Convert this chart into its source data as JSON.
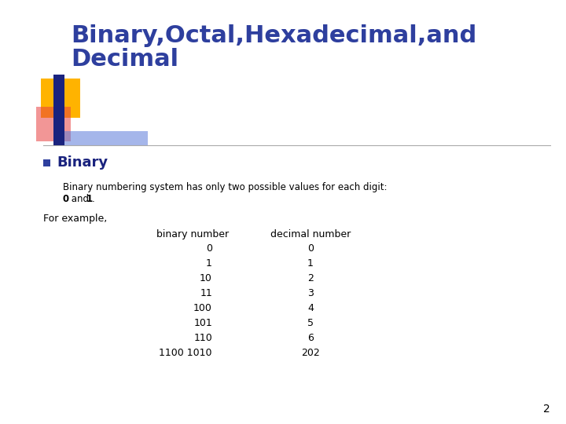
{
  "title_line1": "Binary,Octal,Hexadecimal,and",
  "title_line2": "Decimal",
  "title_color": "#2E3F9E",
  "title_fontsize": 22,
  "bullet_label": "Binary",
  "bullet_color": "#1a237e",
  "bullet_square_color": "#2E3F9E",
  "body_text": "Binary numbering system has only two possible values for each digit:",
  "body_bold0": "0",
  "body_and": " and ",
  "body_bold1": "1",
  "body_period": ".",
  "for_example": "For example,",
  "col1_header": "binary number",
  "col2_header": "decimal number",
  "binary_numbers": [
    "0",
    "1",
    "10",
    "11",
    "100",
    "101",
    "110",
    "1100 1010"
  ],
  "decimal_numbers": [
    "0",
    "1",
    "2",
    "3",
    "4",
    "5",
    "6",
    "202"
  ],
  "page_number": "2",
  "bg_color": "#ffffff",
  "text_color": "#000000",
  "table_font_size": 9,
  "body_font_size": 8.5,
  "decoration_gold_color": "#FFB300",
  "decoration_red_color": "#E84040",
  "decoration_blue_dark_color": "#1a237e",
  "decoration_blue_light_color": "#5c7bd9",
  "decoration_line_color": "#aaaaaa"
}
